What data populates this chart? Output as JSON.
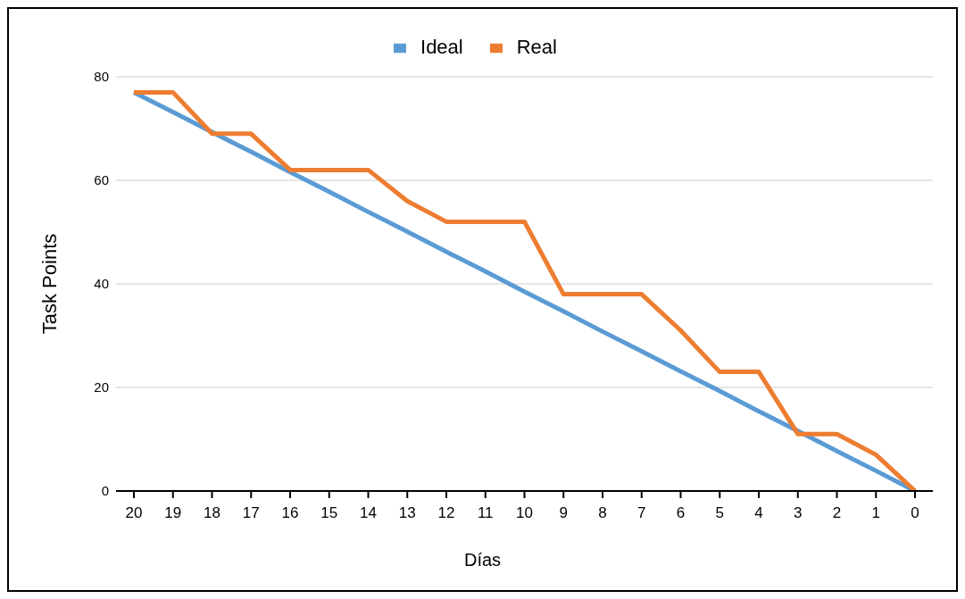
{
  "chart_data": {
    "type": "line",
    "xlabel": "Días",
    "ylabel": "Task Points",
    "categories": [
      "20",
      "19",
      "18",
      "17",
      "16",
      "15",
      "14",
      "13",
      "12",
      "11",
      "10",
      "9",
      "8",
      "7",
      "6",
      "5",
      "4",
      "3",
      "2",
      "1",
      "0"
    ],
    "series": [
      {
        "name": "Ideal",
        "color": "#5b9bd5",
        "values": [
          77,
          73.2,
          69.3,
          65.5,
          61.6,
          57.8,
          53.9,
          50.1,
          46.2,
          42.4,
          38.5,
          34.7,
          30.8,
          27,
          23.1,
          19.3,
          15.4,
          11.6,
          7.7,
          3.9,
          0
        ]
      },
      {
        "name": "Real",
        "color": "#ed7d31",
        "values": [
          77,
          77,
          69,
          69,
          62,
          62,
          62,
          56,
          52,
          52,
          52,
          38,
          38,
          38,
          31,
          23,
          23,
          11,
          11,
          7,
          0
        ]
      }
    ],
    "ylim": [
      0,
      80
    ],
    "yticks": [
      0,
      20,
      40,
      60,
      80
    ],
    "grid": "y",
    "legend": "top",
    "marker": "none",
    "line_style": "solid"
  }
}
